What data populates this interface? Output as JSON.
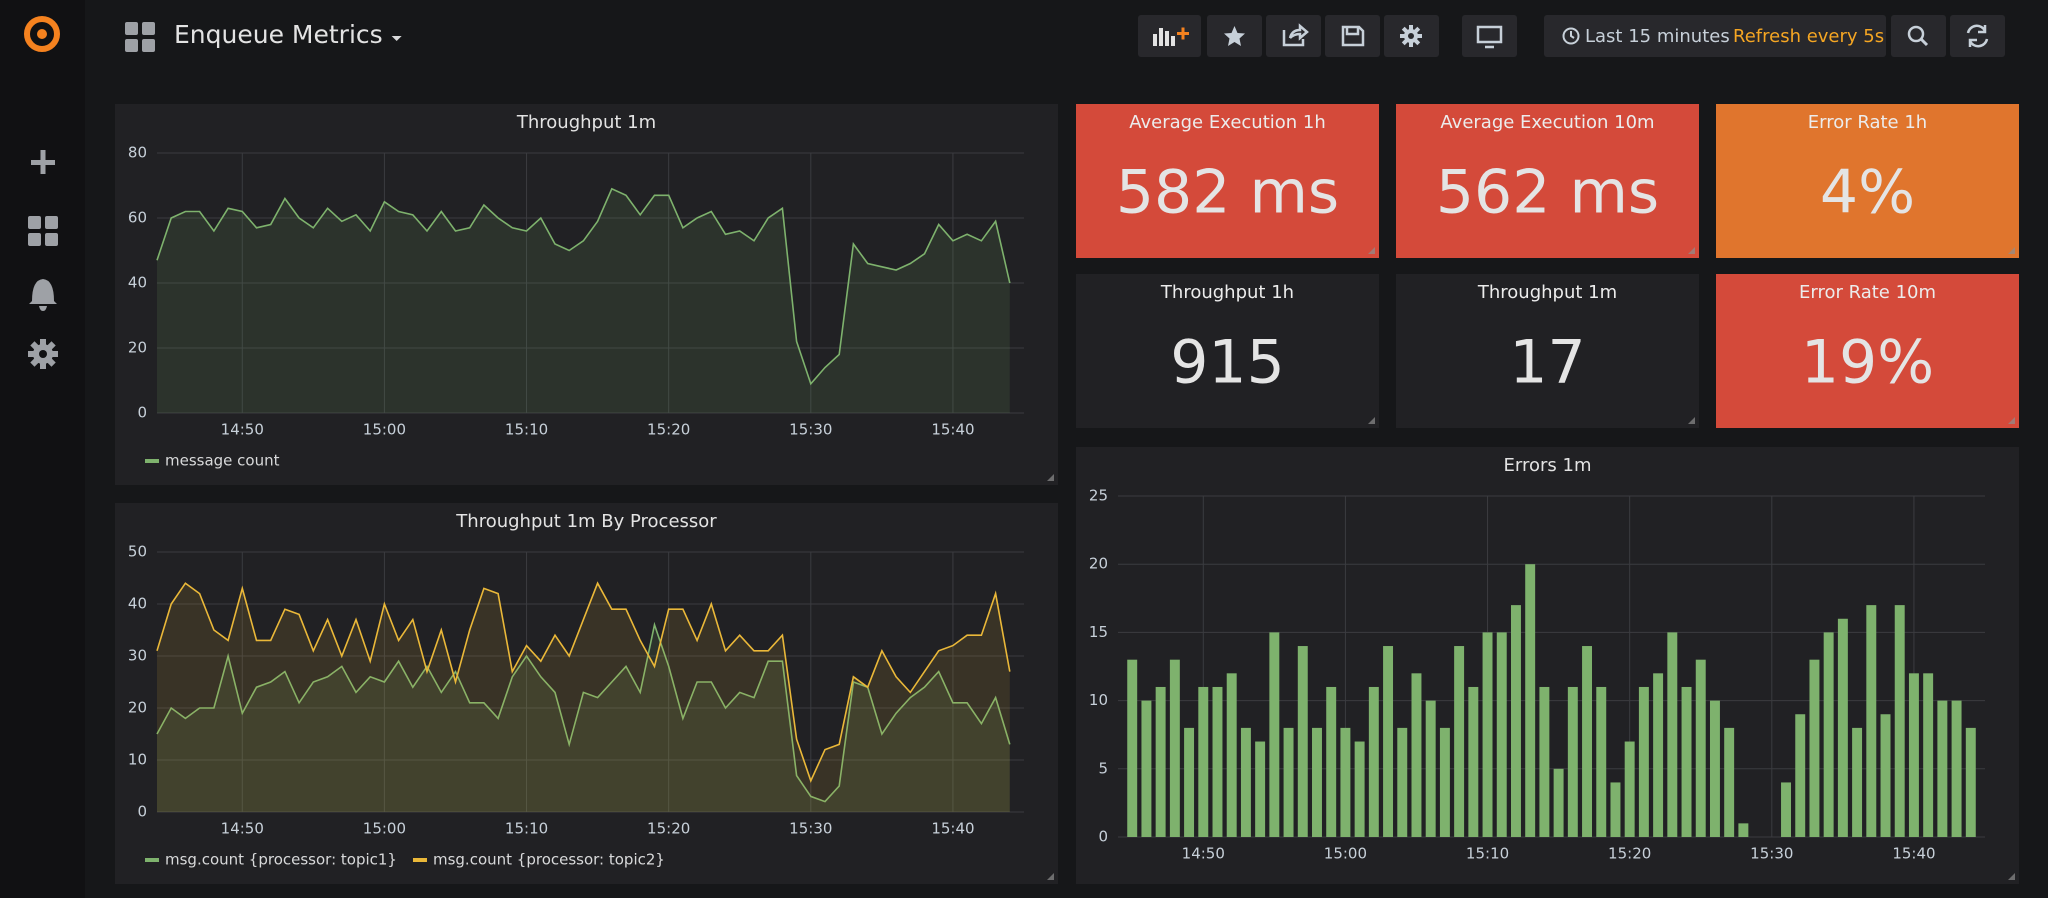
{
  "header": {
    "title": "Enqueue Metrics",
    "time_range": "Last 15 minutes",
    "refresh": "Refresh every 5s"
  },
  "stats": [
    {
      "title": "Average Execution 1h",
      "value": "582 ms",
      "color": "#d44a3a"
    },
    {
      "title": "Average Execution 10m",
      "value": "562 ms",
      "color": "#d44a3a"
    },
    {
      "title": "Error Rate 1h",
      "value": "4%",
      "color": "#e0752d"
    },
    {
      "title": "Throughput 1h",
      "value": "915",
      "color": "#212124"
    },
    {
      "title": "Throughput 1m",
      "value": "17",
      "color": "#212124"
    },
    {
      "title": "Error Rate 10m",
      "value": "19%",
      "color": "#d44a3a"
    }
  ],
  "chart_data": [
    {
      "type": "line",
      "title": "Throughput 1m",
      "x": [
        "14:44",
        "14:45",
        "14:46",
        "14:47",
        "14:48",
        "14:49",
        "14:50",
        "14:51",
        "14:52",
        "14:53",
        "14:54",
        "14:55",
        "14:56",
        "14:57",
        "14:58",
        "14:59",
        "15:00",
        "15:01",
        "15:02",
        "15:03",
        "15:04",
        "15:05",
        "15:06",
        "15:07",
        "15:08",
        "15:09",
        "15:10",
        "15:11",
        "15:12",
        "15:13",
        "15:14",
        "15:15",
        "15:16",
        "15:17",
        "15:18",
        "15:19",
        "15:20",
        "15:21",
        "15:22",
        "15:23",
        "15:24",
        "15:25",
        "15:26",
        "15:27",
        "15:28",
        "15:29",
        "15:30",
        "15:31",
        "15:32",
        "15:33",
        "15:34",
        "15:35",
        "15:36",
        "15:37",
        "15:38",
        "15:39",
        "15:40",
        "15:41",
        "15:42",
        "15:43",
        "15:44"
      ],
      "series": [
        {
          "name": "message count",
          "color": "#7eb26d",
          "values": [
            47,
            60,
            62,
            62,
            56,
            63,
            62,
            57,
            58,
            66,
            60,
            57,
            63,
            59,
            61,
            56,
            65,
            62,
            61,
            56,
            62,
            56,
            57,
            64,
            60,
            57,
            56,
            60,
            52,
            50,
            53,
            59,
            69,
            67,
            61,
            67,
            67,
            57,
            60,
            62,
            55,
            56,
            53,
            60,
            63,
            22,
            9,
            14,
            18,
            52,
            46,
            45,
            44,
            46,
            49,
            58,
            53,
            55,
            53,
            59,
            40
          ]
        }
      ],
      "xlim": [
        "14:44",
        "15:45"
      ],
      "xticks": [
        "14:50",
        "15:00",
        "15:10",
        "15:20",
        "15:30",
        "15:40"
      ],
      "ylim": [
        0,
        80
      ],
      "yticks": [
        0,
        20,
        40,
        60,
        80
      ],
      "grid": true,
      "legend": "bottom-left"
    },
    {
      "type": "line",
      "title": "Throughput 1m By Processor",
      "x": [
        "14:44",
        "14:45",
        "14:46",
        "14:47",
        "14:48",
        "14:49",
        "14:50",
        "14:51",
        "14:52",
        "14:53",
        "14:54",
        "14:55",
        "14:56",
        "14:57",
        "14:58",
        "14:59",
        "15:00",
        "15:01",
        "15:02",
        "15:03",
        "15:04",
        "15:05",
        "15:06",
        "15:07",
        "15:08",
        "15:09",
        "15:10",
        "15:11",
        "15:12",
        "15:13",
        "15:14",
        "15:15",
        "15:16",
        "15:17",
        "15:18",
        "15:19",
        "15:20",
        "15:21",
        "15:22",
        "15:23",
        "15:24",
        "15:25",
        "15:26",
        "15:27",
        "15:28",
        "15:29",
        "15:30",
        "15:31",
        "15:32",
        "15:33",
        "15:34",
        "15:35",
        "15:36",
        "15:37",
        "15:38",
        "15:39",
        "15:40",
        "15:41",
        "15:42",
        "15:43",
        "15:44"
      ],
      "series": [
        {
          "name": "msg.count {processor: topic1}",
          "color": "#7eb26d",
          "values": [
            15,
            20,
            18,
            20,
            20,
            30,
            19,
            24,
            25,
            27,
            21,
            25,
            26,
            28,
            23,
            26,
            25,
            29,
            24,
            28,
            23,
            27,
            21,
            21,
            18,
            26,
            30,
            26,
            23,
            13,
            23,
            22,
            25,
            28,
            23,
            36,
            28,
            18,
            25,
            25,
            20,
            23,
            22,
            29,
            29,
            7,
            3,
            2,
            5,
            25,
            24,
            15,
            19,
            22,
            24,
            27,
            21,
            21,
            17,
            22,
            13
          ]
        },
        {
          "name": "msg.count {processor: topic2}",
          "color": "#eab839",
          "values": [
            31,
            40,
            44,
            42,
            35,
            33,
            43,
            33,
            33,
            39,
            38,
            31,
            37,
            30,
            37,
            29,
            40,
            33,
            37,
            27,
            35,
            25,
            35,
            43,
            42,
            27,
            32,
            29,
            34,
            30,
            37,
            44,
            39,
            39,
            33,
            28,
            39,
            39,
            33,
            40,
            31,
            34,
            31,
            31,
            34,
            14,
            6,
            12,
            13,
            26,
            24,
            31,
            26,
            23,
            27,
            31,
            32,
            34,
            34,
            42,
            27
          ]
        }
      ],
      "xlim": [
        "14:44",
        "15:45"
      ],
      "xticks": [
        "14:50",
        "15:00",
        "15:10",
        "15:20",
        "15:30",
        "15:40"
      ],
      "ylim": [
        0,
        50
      ],
      "yticks": [
        0,
        10,
        20,
        30,
        40,
        50
      ],
      "grid": true,
      "legend": "bottom-left"
    },
    {
      "type": "bar",
      "title": "Errors 1m",
      "x": [
        "14:45",
        "14:46",
        "14:47",
        "14:48",
        "14:49",
        "14:50",
        "14:51",
        "14:52",
        "14:53",
        "14:54",
        "14:55",
        "14:56",
        "14:57",
        "14:58",
        "14:59",
        "15:00",
        "15:01",
        "15:02",
        "15:03",
        "15:04",
        "15:05",
        "15:06",
        "15:07",
        "15:08",
        "15:09",
        "15:10",
        "15:11",
        "15:12",
        "15:13",
        "15:14",
        "15:15",
        "15:16",
        "15:17",
        "15:18",
        "15:19",
        "15:20",
        "15:21",
        "15:22",
        "15:23",
        "15:24",
        "15:25",
        "15:26",
        "15:27",
        "15:28",
        "15:29",
        "15:30",
        "15:31",
        "15:32",
        "15:33",
        "15:34",
        "15:35",
        "15:36",
        "15:37",
        "15:38",
        "15:39",
        "15:40",
        "15:41",
        "15:42",
        "15:43",
        "15:44"
      ],
      "values": [
        13,
        10,
        11,
        13,
        8,
        11,
        11,
        12,
        8,
        7,
        15,
        8,
        14,
        8,
        11,
        8,
        7,
        11,
        14,
        8,
        12,
        10,
        8,
        14,
        11,
        15,
        15,
        17,
        20,
        11,
        5,
        11,
        14,
        11,
        4,
        7,
        11,
        12,
        15,
        11,
        13,
        10,
        8,
        1,
        0,
        0,
        4,
        9,
        13,
        15,
        16,
        8,
        17,
        9,
        17,
        12,
        12,
        10,
        10,
        8
      ],
      "color": "#7eb26d",
      "xlim": [
        "14:44",
        "15:45"
      ],
      "xticks": [
        "14:50",
        "15:00",
        "15:10",
        "15:20",
        "15:30",
        "15:40"
      ],
      "ylim": [
        0,
        25
      ],
      "yticks": [
        0,
        5,
        10,
        15,
        20,
        25
      ],
      "grid": true
    }
  ]
}
